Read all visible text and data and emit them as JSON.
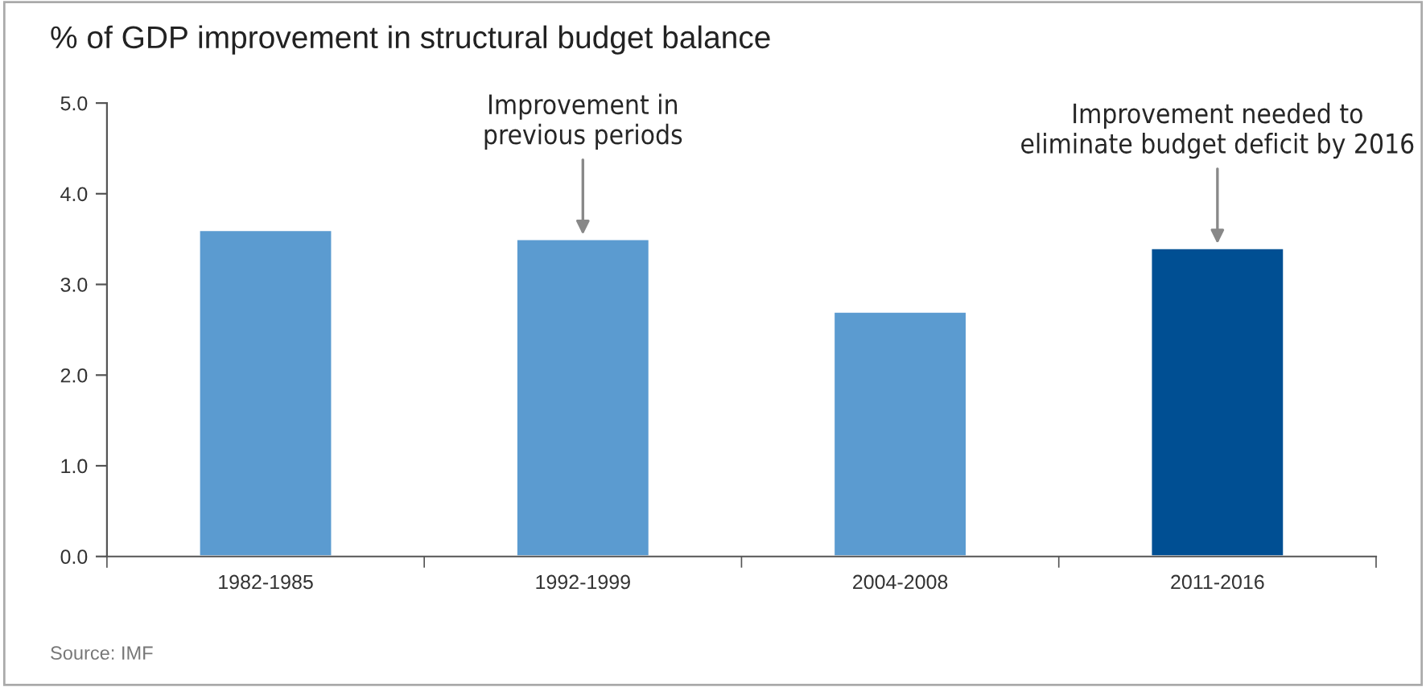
{
  "chart_data": {
    "type": "bar",
    "title": "% of GDP improvement in structural budget balance",
    "categories": [
      "1982-1985",
      "1992-1999",
      "2004-2008",
      "2011-2016"
    ],
    "values": [
      3.6,
      3.5,
      2.7,
      3.4
    ],
    "colors": [
      "#5b9bd0",
      "#5b9bd0",
      "#5b9bd0",
      "#004f93"
    ],
    "ylim": [
      0,
      5
    ],
    "yticks": [
      {
        "value": 0,
        "label": "0.0"
      },
      {
        "value": 1,
        "label": "1.0"
      },
      {
        "value": 2,
        "label": "2.0"
      },
      {
        "value": 3,
        "label": "3.0"
      },
      {
        "value": 4,
        "label": "4.0"
      },
      {
        "value": 5,
        "label": "5.0"
      }
    ],
    "grid": false,
    "annotations": [
      {
        "text": "Improvement in\nprevious periods",
        "x": "1992-1999",
        "y": 3.5
      },
      {
        "text": "Improvement needed to\neliminate budget deficit by 2016",
        "x": "2011-2016",
        "y": 3.4
      },
      "Source: IMF"
    ]
  }
}
